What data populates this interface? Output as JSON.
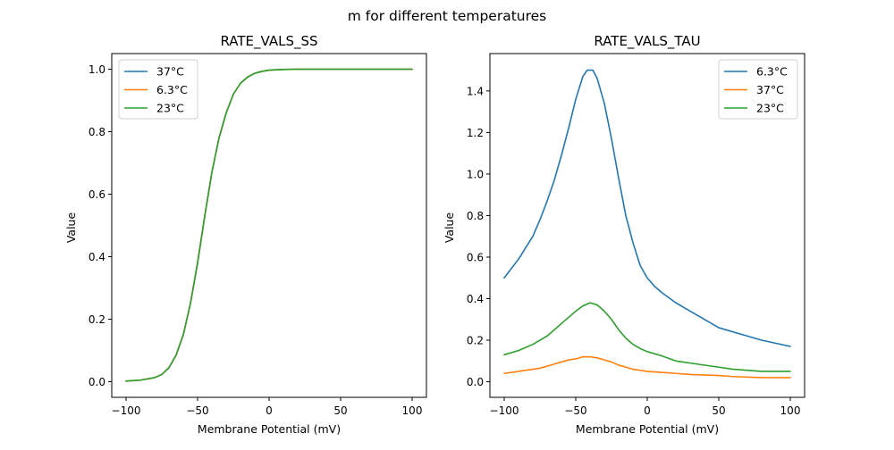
{
  "figure": {
    "suptitle": "m for different temperatures"
  },
  "colors": {
    "blue": "#1f77b4",
    "orange": "#ff7f0e",
    "green": "#2ca02c"
  },
  "chart_data": [
    {
      "type": "line",
      "title": "RATE_VALS_SS",
      "xlabel": "Membrane Potential (mV)",
      "ylabel": "Value",
      "xlim": [
        -110,
        110
      ],
      "ylim": [
        -0.05,
        1.05
      ],
      "xticks": [
        -100,
        -50,
        0,
        50,
        100
      ],
      "xtick_labels": [
        "−100",
        "−50",
        "0",
        "50",
        "100"
      ],
      "yticks": [
        0.0,
        0.2,
        0.4,
        0.6,
        0.8,
        1.0
      ],
      "ytick_labels": [
        "0.0",
        "0.2",
        "0.4",
        "0.6",
        "0.8",
        "1.0"
      ],
      "legend_position": "top-left",
      "x": [
        -100,
        -90,
        -80,
        -75,
        -70,
        -65,
        -60,
        -55,
        -50,
        -45,
        -40,
        -35,
        -30,
        -25,
        -20,
        -15,
        -10,
        -5,
        0,
        10,
        20,
        30,
        50,
        70,
        100
      ],
      "series": [
        {
          "name": "37°C",
          "color": "#1f77b4",
          "values": [
            0.002,
            0.005,
            0.013,
            0.023,
            0.045,
            0.085,
            0.15,
            0.25,
            0.38,
            0.53,
            0.67,
            0.78,
            0.86,
            0.92,
            0.955,
            0.975,
            0.987,
            0.993,
            0.997,
            0.999,
            1.0,
            1.0,
            1.0,
            1.0,
            1.0
          ]
        },
        {
          "name": "6.3°C",
          "color": "#ff7f0e",
          "values": [
            0.002,
            0.005,
            0.013,
            0.023,
            0.045,
            0.085,
            0.15,
            0.25,
            0.38,
            0.53,
            0.67,
            0.78,
            0.86,
            0.92,
            0.955,
            0.975,
            0.987,
            0.993,
            0.997,
            0.999,
            1.0,
            1.0,
            1.0,
            1.0,
            1.0
          ]
        },
        {
          "name": "23°C",
          "color": "#2ca02c",
          "values": [
            0.002,
            0.005,
            0.013,
            0.023,
            0.045,
            0.085,
            0.15,
            0.25,
            0.38,
            0.53,
            0.67,
            0.78,
            0.86,
            0.92,
            0.955,
            0.975,
            0.987,
            0.993,
            0.997,
            0.999,
            1.0,
            1.0,
            1.0,
            1.0,
            1.0
          ]
        }
      ]
    },
    {
      "type": "line",
      "title": "RATE_VALS_TAU",
      "xlabel": "Membrane Potential (mV)",
      "ylabel": "Value",
      "xlim": [
        -110,
        110
      ],
      "ylim": [
        -0.075,
        1.58
      ],
      "xticks": [
        -100,
        -50,
        0,
        50,
        100
      ],
      "xtick_labels": [
        "−100",
        "−50",
        "0",
        "50",
        "100"
      ],
      "yticks": [
        0.0,
        0.2,
        0.4,
        0.6,
        0.8,
        1.0,
        1.2,
        1.4
      ],
      "ytick_labels": [
        "0.0",
        "0.2",
        "0.4",
        "0.6",
        "0.8",
        "1.0",
        "1.2",
        "1.4"
      ],
      "legend_position": "top-right",
      "series": [
        {
          "name": "6.3°C",
          "color": "#1f77b4",
          "x": [
            -100,
            -90,
            -80,
            -75,
            -70,
            -65,
            -60,
            -55,
            -50,
            -45,
            -42,
            -38,
            -35,
            -30,
            -25,
            -20,
            -15,
            -10,
            -5,
            0,
            5,
            10,
            20,
            30,
            50,
            70,
            80,
            100
          ],
          "values": [
            0.5,
            0.59,
            0.7,
            0.78,
            0.87,
            0.97,
            1.09,
            1.22,
            1.36,
            1.47,
            1.5,
            1.5,
            1.46,
            1.34,
            1.17,
            0.98,
            0.8,
            0.67,
            0.56,
            0.5,
            0.46,
            0.43,
            0.38,
            0.34,
            0.26,
            0.22,
            0.2,
            0.17
          ]
        },
        {
          "name": "37°C",
          "color": "#ff7f0e",
          "x": [
            -100,
            -90,
            -80,
            -75,
            -70,
            -65,
            -60,
            -55,
            -50,
            -45,
            -40,
            -35,
            -30,
            -25,
            -20,
            -15,
            -10,
            -5,
            0,
            10,
            20,
            30,
            50,
            60,
            80,
            100
          ],
          "values": [
            0.04,
            0.05,
            0.06,
            0.065,
            0.075,
            0.085,
            0.095,
            0.105,
            0.11,
            0.12,
            0.12,
            0.115,
            0.105,
            0.095,
            0.08,
            0.07,
            0.06,
            0.055,
            0.05,
            0.045,
            0.04,
            0.035,
            0.03,
            0.025,
            0.02,
            0.02
          ]
        },
        {
          "name": "23°C",
          "color": "#2ca02c",
          "x": [
            -100,
            -90,
            -80,
            -75,
            -70,
            -65,
            -60,
            -55,
            -50,
            -45,
            -40,
            -35,
            -30,
            -25,
            -20,
            -15,
            -10,
            -5,
            0,
            10,
            20,
            30,
            50,
            60,
            80,
            100
          ],
          "values": [
            0.13,
            0.15,
            0.18,
            0.2,
            0.22,
            0.25,
            0.28,
            0.31,
            0.34,
            0.365,
            0.38,
            0.37,
            0.34,
            0.3,
            0.25,
            0.21,
            0.18,
            0.16,
            0.145,
            0.125,
            0.1,
            0.09,
            0.07,
            0.06,
            0.05,
            0.05
          ]
        }
      ]
    }
  ]
}
